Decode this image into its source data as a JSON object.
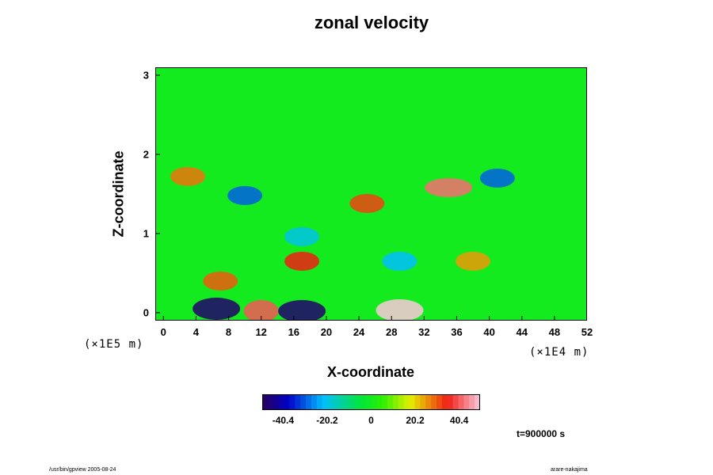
{
  "chart_data": {
    "type": "heatmap",
    "title": "zonal velocity",
    "xlabel": "X-coordinate",
    "ylabel": "Z-coordinate",
    "x_ticks": [
      "0",
      "4",
      "8",
      "12",
      "16",
      "20",
      "24",
      "28",
      "32",
      "36",
      "40",
      "44",
      "48",
      "52"
    ],
    "y_ticks": [
      "0",
      "1",
      "2",
      "3"
    ],
    "x_scale_label": "(×1E4 m)",
    "y_scale_label": "(×1E5 m)",
    "xlim": [
      -1,
      52
    ],
    "ylim": [
      -0.1,
      3.1
    ],
    "colorbar": {
      "ticks": [
        "-40.4",
        "-20.2",
        "0",
        "20.2",
        "40.4"
      ],
      "tick_values": [
        -40.4,
        -20.2,
        0,
        20.2,
        40.4
      ],
      "range": [
        -50,
        50
      ]
    },
    "features": [
      {
        "x": 6.5,
        "z": 0.05,
        "value": -48
      },
      {
        "x": 12,
        "z": 0.02,
        "value": 40
      },
      {
        "x": 17,
        "z": 0.02,
        "value": -48
      },
      {
        "x": 29,
        "z": 0.03,
        "value": 50
      },
      {
        "x": 35,
        "z": 1.58,
        "value": 42
      },
      {
        "x": 41,
        "z": 1.7,
        "value": -30
      },
      {
        "x": 10,
        "z": 1.48,
        "value": -30
      },
      {
        "x": 7,
        "z": 0.4,
        "value": 30
      },
      {
        "x": 17,
        "z": 0.65,
        "value": 35
      },
      {
        "x": 29,
        "z": 0.65,
        "value": -22
      },
      {
        "x": 38,
        "z": 0.65,
        "value": 25
      },
      {
        "x": 3,
        "z": 1.72,
        "value": 28
      },
      {
        "x": 25,
        "z": 1.38,
        "value": 32
      },
      {
        "x": 17,
        "z": 0.96,
        "value": -20
      }
    ],
    "time_label": "t=900000 s"
  },
  "footer": {
    "left": "/usr/bin/gpview 2005-08-24",
    "right": "arare-nakajima"
  }
}
